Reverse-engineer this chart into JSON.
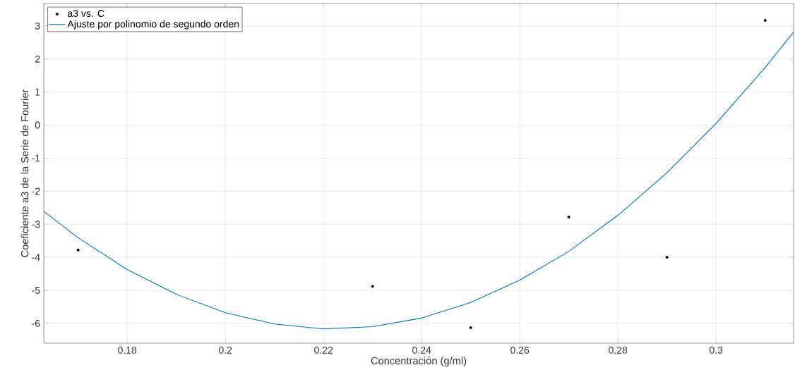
{
  "chart_data": {
    "type": "scatter",
    "xlabel": "Concentración (g/ml)",
    "ylabel": "Coeficiente a3 de la Serie de Fourier",
    "xlim": [
      0.163,
      0.3158
    ],
    "ylim": [
      -6.6,
      3.68
    ],
    "xticks": [
      0.18,
      0.2,
      0.22,
      0.24,
      0.26,
      0.28,
      0.3
    ],
    "yticks": [
      -6,
      -5,
      -4,
      -3,
      -2,
      -1,
      0,
      1,
      2,
      3
    ],
    "grid": true,
    "legend": "top left",
    "series": [
      {
        "name": "a3 vs. C",
        "marker": "circle",
        "color": "#000000",
        "x": [
          0.17,
          0.23,
          0.25,
          0.27,
          0.29,
          0.31
        ],
        "values": [
          -3.78,
          -4.88,
          -6.13,
          -2.78,
          -4.0,
          3.17
        ]
      },
      {
        "name": "Ajuste por polinomio de segundo orden",
        "type": "line",
        "marker": "none",
        "color": "#0072bd",
        "x": [
          0.163,
          0.17,
          0.18,
          0.19,
          0.2,
          0.21,
          0.22,
          0.23,
          0.24,
          0.25,
          0.26,
          0.27,
          0.28,
          0.29,
          0.3,
          0.31,
          0.3158
        ],
        "values": [
          -2.61,
          -3.41,
          -4.37,
          -5.12,
          -5.68,
          -6.02,
          -6.17,
          -6.1,
          -5.84,
          -5.37,
          -4.69,
          -3.82,
          -2.73,
          -1.44,
          0.05,
          1.74,
          2.82
        ]
      }
    ]
  }
}
